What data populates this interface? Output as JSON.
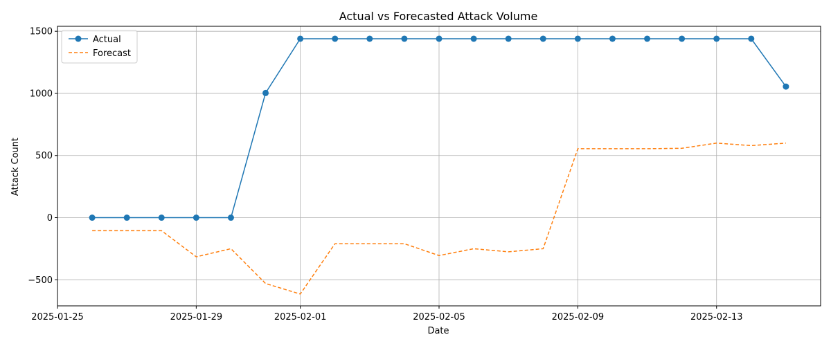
{
  "chart_data": {
    "type": "line",
    "title": "Actual vs Forecasted Attack Volume",
    "xlabel": "Date",
    "ylabel": "Attack Count",
    "x": [
      "2025-01-26",
      "2025-01-27",
      "2025-01-28",
      "2025-01-29",
      "2025-01-30",
      "2025-01-31",
      "2025-02-01",
      "2025-02-02",
      "2025-02-03",
      "2025-02-04",
      "2025-02-05",
      "2025-02-06",
      "2025-02-07",
      "2025-02-08",
      "2025-02-09",
      "2025-02-10",
      "2025-02-11",
      "2025-02-12",
      "2025-02-13",
      "2025-02-14",
      "2025-02-15"
    ],
    "xlim": [
      "2025-01-25",
      "2025-02-16"
    ],
    "ylim": [
      -710,
      1540
    ],
    "xticks": [
      "2025-01-25",
      "2025-01-29",
      "2025-02-01",
      "2025-02-05",
      "2025-02-09",
      "2025-02-13"
    ],
    "yticks": [
      -500,
      0,
      500,
      1000,
      1500
    ],
    "ytick_labels": [
      "−500",
      "0",
      "500",
      "1000",
      "1500"
    ],
    "grid": true,
    "legend_position": "top-left",
    "series": [
      {
        "name": "Actual",
        "color": "#1f77b4",
        "style": "solid",
        "marker": "circle",
        "values": [
          0,
          0,
          0,
          0,
          0,
          1003,
          1440,
          1440,
          1440,
          1440,
          1440,
          1440,
          1440,
          1440,
          1440,
          1440,
          1440,
          1440,
          1440,
          1440,
          1055
        ]
      },
      {
        "name": "Forecast",
        "color": "#ff7f0e",
        "style": "dashed",
        "marker": "none",
        "values": [
          -105,
          -105,
          -105,
          -315,
          -250,
          -530,
          -615,
          -210,
          -210,
          -210,
          -305,
          -250,
          -275,
          -250,
          555,
          555,
          555,
          558,
          600,
          580,
          600
        ]
      }
    ]
  }
}
